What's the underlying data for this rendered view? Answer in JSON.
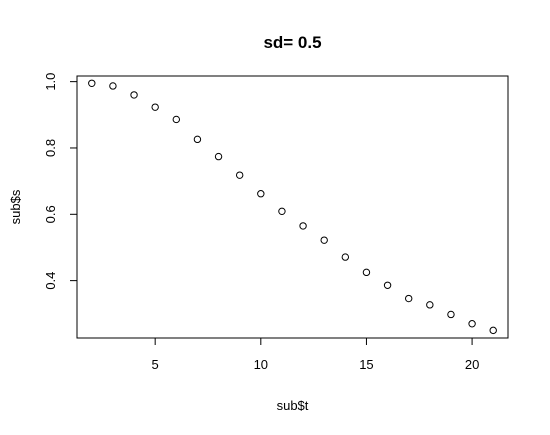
{
  "chart_data": {
    "type": "scatter",
    "title": "sd= 0.5",
    "xlabel": "sub$t",
    "ylabel": "sub$s",
    "xlim": [
      1.3,
      21.7
    ],
    "ylim": [
      0.227,
      1.017
    ],
    "x_ticks": [
      5,
      10,
      15,
      20
    ],
    "x_tick_labels": [
      "5",
      "10",
      "15",
      "20"
    ],
    "y_ticks": [
      0.4,
      0.6,
      0.8,
      1.0
    ],
    "y_tick_labels": [
      "0.4",
      "0.6",
      "0.8",
      "1.0"
    ],
    "grid": false,
    "legend": "none",
    "marker": "open-circle",
    "colors": {
      "points": "#000000",
      "axes": "#000000",
      "background": "#ffffff"
    },
    "x": [
      2,
      3,
      4,
      5,
      6,
      7,
      8,
      9,
      10,
      11,
      12,
      13,
      14,
      15,
      16,
      17,
      18,
      19,
      20,
      21
    ],
    "y": [
      0.995,
      0.987,
      0.96,
      0.923,
      0.886,
      0.826,
      0.774,
      0.718,
      0.662,
      0.609,
      0.565,
      0.522,
      0.471,
      0.425,
      0.386,
      0.346,
      0.327,
      0.298,
      0.27,
      0.25
    ]
  }
}
